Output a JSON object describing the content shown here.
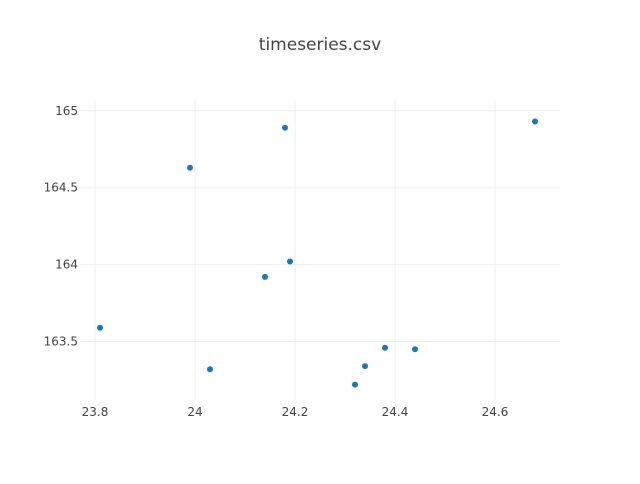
{
  "chart_data": {
    "type": "scatter",
    "title": "timeseries.csv",
    "xlabel": "",
    "ylabel": "",
    "x_ticks": [
      "23.8",
      "24",
      "24.2",
      "24.4",
      "24.6"
    ],
    "y_ticks": [
      "163.5",
      "164",
      "164.5",
      "165"
    ],
    "xlim": [
      23.77,
      24.73
    ],
    "ylim": [
      163.12,
      165.07
    ],
    "grid": true,
    "marker_color": "#1f77b4",
    "points": [
      {
        "x": 23.81,
        "y": 163.59
      },
      {
        "x": 23.99,
        "y": 164.63
      },
      {
        "x": 24.03,
        "y": 163.32
      },
      {
        "x": 24.14,
        "y": 163.92
      },
      {
        "x": 24.18,
        "y": 164.89
      },
      {
        "x": 24.19,
        "y": 164.02
      },
      {
        "x": 24.32,
        "y": 163.22
      },
      {
        "x": 24.34,
        "y": 163.34
      },
      {
        "x": 24.38,
        "y": 163.46
      },
      {
        "x": 24.44,
        "y": 163.45
      },
      {
        "x": 24.68,
        "y": 164.93
      }
    ]
  }
}
